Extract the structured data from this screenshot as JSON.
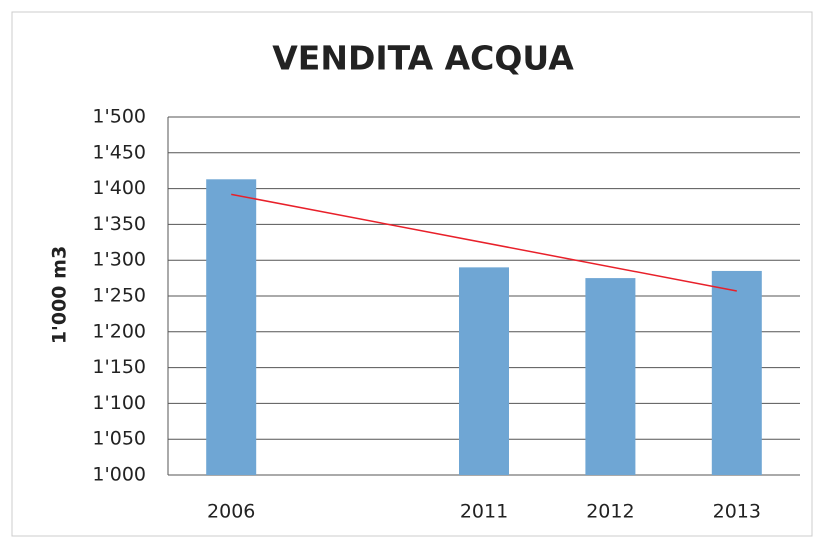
{
  "chart_data": {
    "type": "bar",
    "title": "VENDITA ACQUA",
    "y_label": "1'000 m3",
    "categories": [
      "2006",
      null,
      "2011",
      "2012",
      "2013"
    ],
    "values": [
      1413,
      null,
      1290,
      1275,
      1285
    ],
    "color": "#6fa6d4",
    "ylim": [
      1000,
      1500
    ],
    "yticks": [
      {
        "value": 1000,
        "label": "1'000"
      },
      {
        "value": 1050,
        "label": "1'050"
      },
      {
        "value": 1100,
        "label": "1'100"
      },
      {
        "value": 1150,
        "label": "1'150"
      },
      {
        "value": 1200,
        "label": "1'200"
      },
      {
        "value": 1250,
        "label": "1'250"
      },
      {
        "value": 1300,
        "label": "1'300"
      },
      {
        "value": 1350,
        "label": "1'350"
      },
      {
        "value": 1400,
        "label": "1'400"
      },
      {
        "value": 1450,
        "label": "1'450"
      },
      {
        "value": 1500,
        "label": "1'500"
      }
    ],
    "grid": true,
    "trend": {
      "color": "#e8202a",
      "start": 1392,
      "end": 1257
    }
  }
}
